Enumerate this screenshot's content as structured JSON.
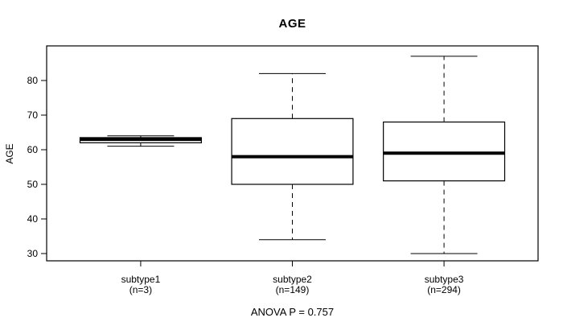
{
  "chart_data": {
    "type": "boxplot",
    "title": "AGE",
    "xlabel": "",
    "ylabel": "AGE",
    "annotation": "ANOVA P = 0.757",
    "yticks": [
      30,
      40,
      50,
      60,
      70,
      80
    ],
    "ylim": [
      27.9,
      90
    ],
    "xlim": [
      0.38,
      3.62
    ],
    "grid": false,
    "legend": "none",
    "box_width": 0.8,
    "cap_width": 0.44,
    "colors": {
      "line": "#000000",
      "box_fill": "#ffffff",
      "background": "#ffffff"
    },
    "groups": [
      {
        "label": "subtype1",
        "sublabel": "(n=3)",
        "x": 1,
        "min": 61,
        "q1": 62,
        "median": 63,
        "q3": 63.5,
        "max": 64
      },
      {
        "label": "subtype2",
        "sublabel": "(n=149)",
        "x": 2,
        "min": 34,
        "q1": 50,
        "median": 58,
        "q3": 69,
        "max": 82
      },
      {
        "label": "subtype3",
        "sublabel": "(n=294)",
        "x": 3,
        "min": 30,
        "q1": 51,
        "median": 59,
        "q3": 68,
        "max": 87
      }
    ]
  }
}
